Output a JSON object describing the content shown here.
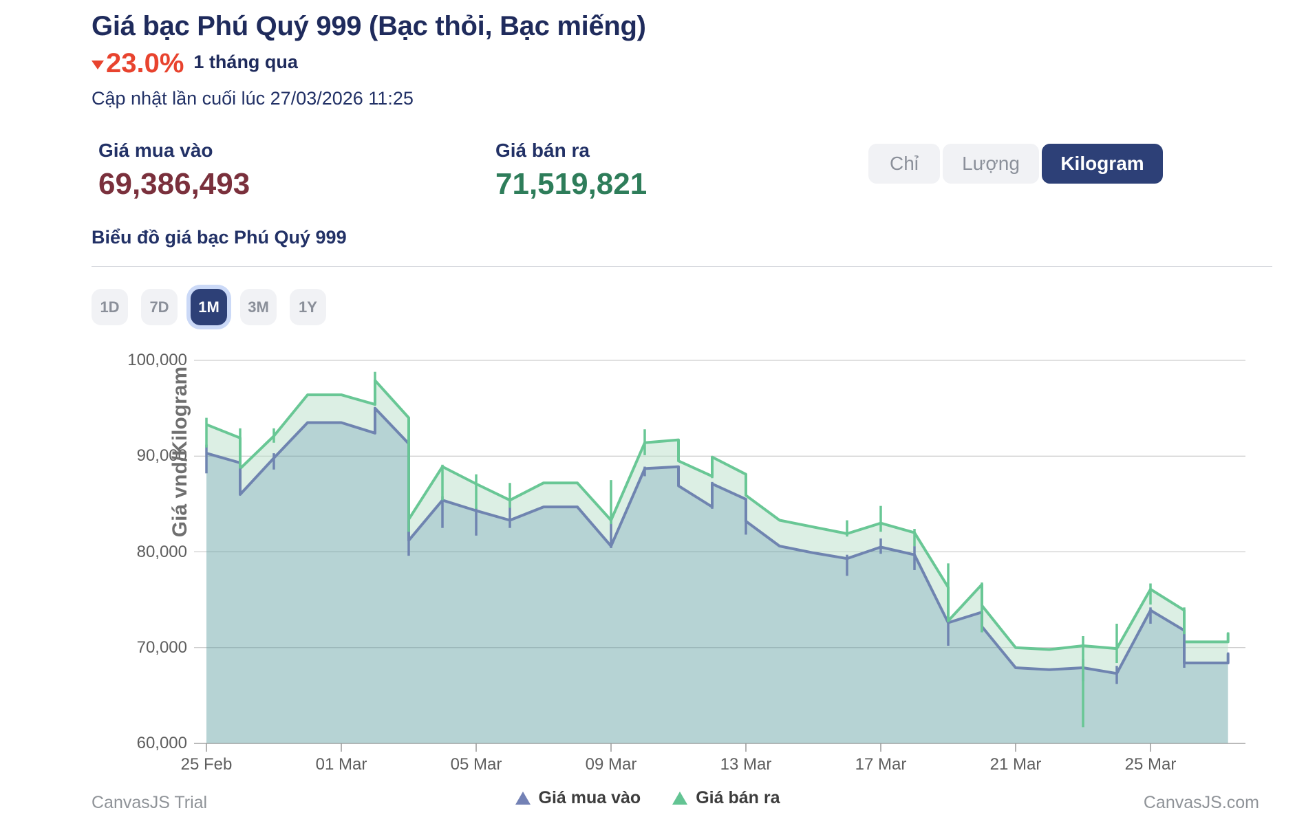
{
  "header": {
    "title": "Giá bạc Phú Quý 999 (Bạc thỏi, Bạc miếng)",
    "change_percent": "23.0%",
    "change_direction": "down",
    "change_period": "1 tháng qua",
    "last_updated": "Cập nhật lần cuối lúc 27/03/2026 11:25"
  },
  "prices": {
    "buy_label": "Giá mua vào",
    "buy_value": "69,386,493",
    "sell_label": "Giá bán ra",
    "sell_value": "71,519,821"
  },
  "unit_toggle": {
    "options": [
      "Chỉ",
      "Lượng",
      "Kilogram"
    ],
    "selected": "Kilogram"
  },
  "chart_section": {
    "subtitle": "Biểu đồ giá bạc Phú Quý 999"
  },
  "range_buttons": {
    "options": [
      "1D",
      "7D",
      "1M",
      "3M",
      "1Y"
    ],
    "selected": "1M"
  },
  "footer": {
    "trial_text": "CanvasJS Trial",
    "site_text": "CanvasJS.com"
  },
  "colors": {
    "title_navy": "#1f2b5c",
    "accent_navy": "#2d4077",
    "negative_red": "#e8432e",
    "buy_value_maroon": "#7a303c",
    "sell_value_green": "#2e7d5a",
    "selected_halo": "#cbd9f7",
    "gridline": "#c0c0c0",
    "axis_line": "#a3a3a3"
  },
  "chart_data": {
    "type": "line",
    "title": "",
    "xlabel": "",
    "ylabel": "Giá vnd/Kilogram",
    "x_unit": "days since 25 Feb",
    "ylim": [
      60000,
      100000
    ],
    "grid": true,
    "legend_position": "bottom",
    "yticks": [
      {
        "value": 100000,
        "label": "100,000"
      },
      {
        "value": 90000,
        "label": "90,000"
      },
      {
        "value": 80000,
        "label": "80,000"
      },
      {
        "value": 70000,
        "label": "70,000"
      },
      {
        "value": 60000,
        "label": "60,000"
      }
    ],
    "xticks": [
      {
        "day": 0,
        "label": "25 Feb"
      },
      {
        "day": 4,
        "label": "01 Mar"
      },
      {
        "day": 8,
        "label": "05 Mar"
      },
      {
        "day": 12,
        "label": "09 Mar"
      },
      {
        "day": 16,
        "label": "13 Mar"
      },
      {
        "day": 20,
        "label": "17 Mar"
      },
      {
        "day": 24,
        "label": "21 Mar"
      },
      {
        "day": 28,
        "label": "25 Mar"
      }
    ],
    "series": [
      {
        "name": "Giá mua vào",
        "color": "#6f84b0",
        "fill": "rgba(93,158,160,0.45)",
        "line": [
          [
            0,
            90300
          ],
          [
            1,
            89300
          ],
          [
            1,
            86000
          ],
          [
            2,
            89800
          ],
          [
            3,
            93500
          ],
          [
            4,
            93500
          ],
          [
            5,
            92400
          ],
          [
            5,
            95000
          ],
          [
            6,
            91300
          ],
          [
            6,
            81200
          ],
          [
            7,
            85400
          ],
          [
            8,
            84300
          ],
          [
            9,
            83300
          ],
          [
            10,
            84700
          ],
          [
            11,
            84700
          ],
          [
            12,
            80600
          ],
          [
            13,
            88700
          ],
          [
            14,
            88900
          ],
          [
            14,
            86900
          ],
          [
            15,
            84700
          ],
          [
            15,
            87100
          ],
          [
            16,
            85500
          ],
          [
            16,
            83200
          ],
          [
            17,
            80600
          ],
          [
            18,
            79900
          ],
          [
            19,
            79300
          ],
          [
            20,
            80500
          ],
          [
            21,
            79700
          ],
          [
            22,
            72600
          ],
          [
            23,
            73700
          ],
          [
            23,
            72200
          ],
          [
            24,
            67900
          ],
          [
            25,
            67700
          ],
          [
            26,
            67900
          ],
          [
            27,
            67300
          ],
          [
            28,
            73900
          ],
          [
            29,
            71800
          ],
          [
            29,
            68400
          ],
          [
            30.3,
            68400
          ],
          [
            30.3,
            69386
          ]
        ],
        "bars": [
          [
            0,
            88200,
            91200
          ],
          [
            1,
            86000,
            89600
          ],
          [
            2,
            88600,
            90300
          ],
          [
            5,
            92300,
            95100
          ],
          [
            6,
            79600,
            91300
          ],
          [
            7,
            82500,
            85800
          ],
          [
            8,
            81700,
            84600
          ],
          [
            9,
            82500,
            85600
          ],
          [
            12,
            80400,
            83400
          ],
          [
            13,
            87900,
            88900
          ],
          [
            15,
            84500,
            87300
          ],
          [
            16,
            81800,
            83800
          ],
          [
            19,
            77500,
            79700
          ],
          [
            20,
            79800,
            81400
          ],
          [
            21,
            78100,
            80600
          ],
          [
            22,
            70200,
            72600
          ],
          [
            23,
            71600,
            74600
          ],
          [
            26,
            66500,
            68800
          ],
          [
            27,
            66200,
            68100
          ],
          [
            28,
            72500,
            74200
          ],
          [
            29,
            67900,
            71900
          ],
          [
            30.3,
            68400,
            69500
          ]
        ]
      },
      {
        "name": "Giá bán ra",
        "color": "#69c795",
        "fill": "rgba(185,223,201,0.5)",
        "line": [
          [
            0,
            93300
          ],
          [
            1,
            91900
          ],
          [
            1,
            88700
          ],
          [
            2,
            92100
          ],
          [
            3,
            96400
          ],
          [
            4,
            96400
          ],
          [
            5,
            95400
          ],
          [
            5,
            97900
          ],
          [
            6,
            94000
          ],
          [
            6,
            83400
          ],
          [
            7,
            88900
          ],
          [
            8,
            87100
          ],
          [
            9,
            85400
          ],
          [
            10,
            87200
          ],
          [
            11,
            87200
          ],
          [
            12,
            83300
          ],
          [
            13,
            91400
          ],
          [
            14,
            91700
          ],
          [
            14,
            89500
          ],
          [
            15,
            87900
          ],
          [
            15,
            89900
          ],
          [
            16,
            88100
          ],
          [
            16,
            85900
          ],
          [
            17,
            83300
          ],
          [
            18,
            82600
          ],
          [
            19,
            81900
          ],
          [
            20,
            83000
          ],
          [
            21,
            82000
          ],
          [
            22,
            76300
          ],
          [
            22,
            72800
          ],
          [
            23,
            76600
          ],
          [
            23,
            74400
          ],
          [
            24,
            70000
          ],
          [
            25,
            69800
          ],
          [
            26,
            70200
          ],
          [
            27,
            69900
          ],
          [
            28,
            76100
          ],
          [
            29,
            73900
          ],
          [
            29,
            70600
          ],
          [
            30.3,
            70600
          ],
          [
            30.3,
            71520
          ]
        ],
        "bars": [
          [
            0,
            90900,
            94000
          ],
          [
            1,
            88700,
            92900
          ],
          [
            2,
            91400,
            92900
          ],
          [
            5,
            95300,
            98800
          ],
          [
            6,
            82100,
            94000
          ],
          [
            7,
            85400,
            89100
          ],
          [
            8,
            84500,
            88100
          ],
          [
            9,
            84600,
            87200
          ],
          [
            12,
            82900,
            87500
          ],
          [
            13,
            90100,
            92800
          ],
          [
            15,
            87700,
            89900
          ],
          [
            16,
            85900,
            88100
          ],
          [
            19,
            81600,
            83300
          ],
          [
            20,
            82100,
            84800
          ],
          [
            21,
            80600,
            82400
          ],
          [
            22,
            72700,
            78800
          ],
          [
            23,
            71600,
            76800
          ],
          [
            26,
            61700,
            71200
          ],
          [
            27,
            68400,
            72500
          ],
          [
            28,
            74500,
            76700
          ],
          [
            29,
            71400,
            74200
          ],
          [
            30.3,
            70600,
            71600
          ]
        ]
      }
    ]
  }
}
